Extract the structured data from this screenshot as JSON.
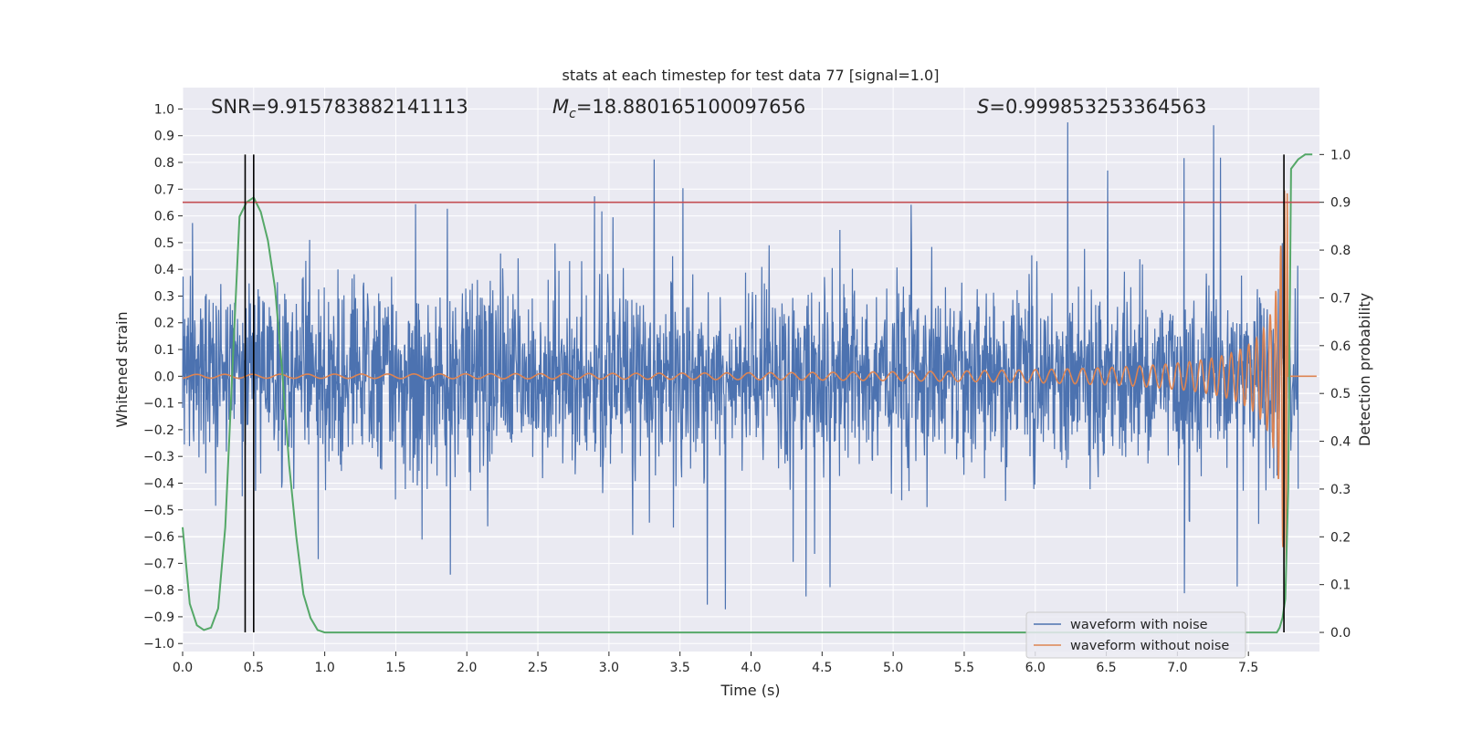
{
  "chart_data": {
    "type": "line",
    "title": "stats at each timestep for test data 77 [signal=1.0]",
    "xlabel": "Time (s)",
    "ylabel": "Whitened strain",
    "y2label": "Detection probability",
    "xlim": [
      0.0,
      8.0
    ],
    "ylim": [
      -1.03,
      1.08
    ],
    "y2lim": [
      -0.04,
      1.14
    ],
    "grid": true,
    "x_ticks": [
      0.0,
      0.5,
      1.0,
      1.5,
      2.0,
      2.5,
      3.0,
      3.5,
      4.0,
      4.5,
      5.0,
      5.5,
      6.0,
      6.5,
      7.0,
      7.5
    ],
    "x_tick_labels": [
      "0.0",
      "0.5",
      "1.0",
      "1.5",
      "2.0",
      "2.5",
      "3.0",
      "3.5",
      "4.0",
      "4.5",
      "5.0",
      "5.5",
      "6.0",
      "6.5",
      "7.0",
      "7.5"
    ],
    "y_ticks": [
      -1.0,
      -0.9,
      -0.8,
      -0.7,
      -0.6,
      -0.5,
      -0.4,
      -0.3,
      -0.2,
      -0.1,
      0.0,
      0.1,
      0.2,
      0.3,
      0.4,
      0.5,
      0.6,
      0.7,
      0.8,
      0.9,
      1.0
    ],
    "y_tick_labels": [
      "−1.0",
      "−0.9",
      "−0.8",
      "−0.7",
      "−0.6",
      "−0.5",
      "−0.4",
      "−0.3",
      "−0.2",
      "−0.1",
      "0.0",
      "0.1",
      "0.2",
      "0.3",
      "0.4",
      "0.5",
      "0.6",
      "0.7",
      "0.8",
      "0.9",
      "1.0"
    ],
    "y2_ticks": [
      0.0,
      0.1,
      0.2,
      0.3,
      0.4,
      0.5,
      0.6,
      0.7,
      0.8,
      0.9,
      1.0
    ],
    "y2_tick_labels": [
      "0.0",
      "0.1",
      "0.2",
      "0.3",
      "0.4",
      "0.5",
      "0.6",
      "0.7",
      "0.8",
      "0.9",
      "1.0"
    ],
    "annotations": {
      "snr": "SNR=9.915783882141113",
      "mc_symbol": "M",
      "mc_sub": "c",
      "mc_value": "=18.880165100097656",
      "s_symbol": "S",
      "s_value": "=0.999853253364563"
    },
    "threshold": {
      "axis": "y2",
      "value": 0.9,
      "color": "#c44e52"
    },
    "vlines": [
      0.44,
      0.5,
      7.75
    ],
    "noise_series": {
      "name": "waveform with noise",
      "color": "#4c72b0",
      "t_start": 0.0,
      "t_end": 7.85,
      "typical_peak": 0.55,
      "max_peak": 0.95,
      "min_trough": -0.92
    },
    "clean_series": {
      "name": "waveform without noise",
      "color": "#dd8452",
      "t_merger": 7.78,
      "amp_start": 0.007,
      "amp_end": 0.7,
      "cycles_start": 5.0,
      "cycles_end": 45.0
    },
    "probability_series": {
      "name": "Detection probability",
      "color": "#55a868",
      "axis": "y2",
      "x": [
        0.0,
        0.05,
        0.1,
        0.15,
        0.2,
        0.25,
        0.3,
        0.35,
        0.4,
        0.45,
        0.5,
        0.55,
        0.6,
        0.65,
        0.7,
        0.75,
        0.8,
        0.85,
        0.9,
        0.95,
        1.0,
        1.5,
        2.0,
        2.5,
        3.0,
        3.5,
        4.0,
        4.5,
        5.0,
        5.5,
        6.0,
        6.5,
        7.0,
        7.5,
        7.65,
        7.7,
        7.72,
        7.74,
        7.76,
        7.78,
        7.8,
        7.85,
        7.9,
        7.95
      ],
      "y": [
        0.22,
        0.06,
        0.015,
        0.005,
        0.01,
        0.05,
        0.22,
        0.55,
        0.87,
        0.9,
        0.91,
        0.88,
        0.82,
        0.72,
        0.55,
        0.35,
        0.2,
        0.08,
        0.03,
        0.005,
        0.0,
        0.0,
        0.0,
        0.0,
        0.0,
        0.0,
        0.0,
        0.0,
        0.0,
        0.0,
        0.0,
        0.0,
        0.0,
        0.0,
        0.0,
        0.0,
        0.01,
        0.03,
        0.07,
        0.3,
        0.97,
        0.99,
        1.0,
        1.0
      ]
    },
    "legend": {
      "position": "lower-right",
      "entries": [
        {
          "label": "waveform with noise",
          "color": "#4c72b0"
        },
        {
          "label": "waveform without noise",
          "color": "#dd8452"
        }
      ]
    }
  }
}
